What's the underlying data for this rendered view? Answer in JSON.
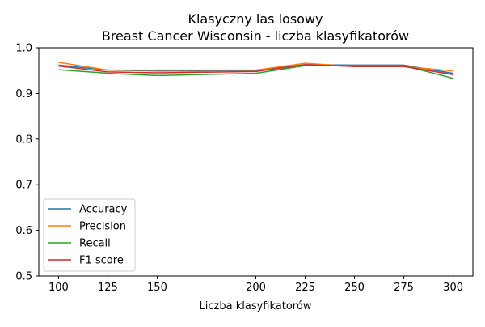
{
  "chart_data": {
    "type": "line",
    "title": "Klasyczny las losowy",
    "subtitle": "Breast Cancer Wisconsin - liczba klasyfikatorów",
    "xlabel": "Liczba klasyfikatorów",
    "ylabel": "",
    "x": [
      100,
      125,
      150,
      200,
      225,
      250,
      275,
      300
    ],
    "xlim": [
      90,
      310
    ],
    "ylim": [
      0.5,
      1.0
    ],
    "xticks": [
      100,
      125,
      150,
      200,
      225,
      250,
      275,
      300
    ],
    "yticks": [
      0.5,
      0.6,
      0.7,
      0.8,
      0.9,
      1.0
    ],
    "grid": false,
    "legend_position": "lower-left",
    "series": [
      {
        "name": "Accuracy",
        "color": "#1f77b4",
        "values": [
          0.962,
          0.951,
          0.949,
          0.95,
          0.963,
          0.962,
          0.962,
          0.944
        ]
      },
      {
        "name": "Precision",
        "color": "#ff7f0e",
        "values": [
          0.968,
          0.951,
          0.951,
          0.951,
          0.966,
          0.959,
          0.959,
          0.949
        ]
      },
      {
        "name": "Recall",
        "color": "#2ca02c",
        "values": [
          0.952,
          0.944,
          0.939,
          0.944,
          0.961,
          0.961,
          0.961,
          0.933
        ]
      },
      {
        "name": "F1 score",
        "color": "#d62728",
        "values": [
          0.96,
          0.947,
          0.945,
          0.948,
          0.963,
          0.959,
          0.959,
          0.941
        ]
      }
    ]
  }
}
